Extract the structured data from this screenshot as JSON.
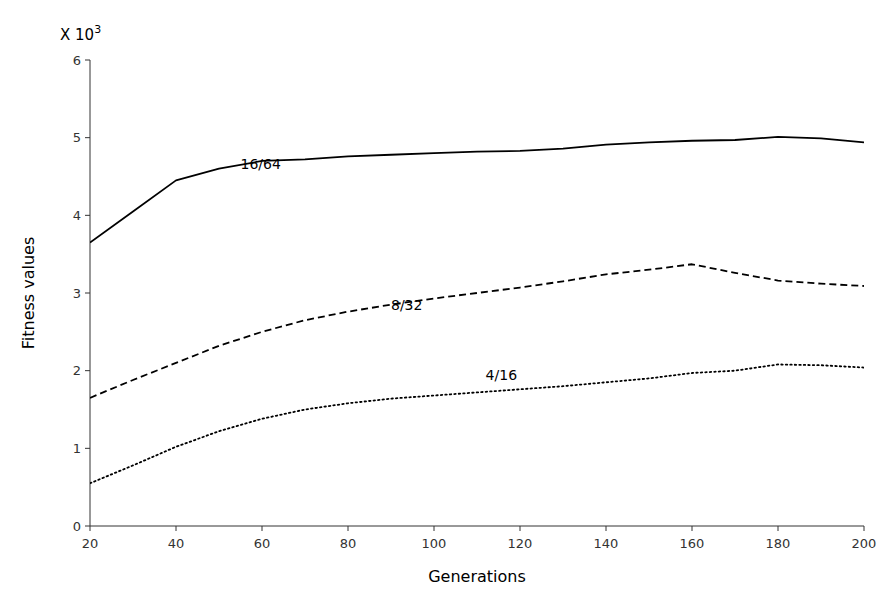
{
  "chart_data": {
    "type": "line",
    "xlabel": "Generations",
    "ylabel": "Fitness values",
    "scale_label": "X 10",
    "scale_exponent": "3",
    "xlim": [
      20,
      200
    ],
    "ylim": [
      0,
      6
    ],
    "xticks": [
      20,
      40,
      60,
      80,
      100,
      120,
      140,
      160,
      180,
      200
    ],
    "yticks": [
      0,
      1,
      2,
      3,
      4,
      5,
      6
    ],
    "x": [
      20,
      30,
      40,
      50,
      60,
      70,
      80,
      90,
      100,
      110,
      120,
      130,
      140,
      150,
      160,
      170,
      180,
      190,
      200
    ],
    "series": [
      {
        "line_style": "solid",
        "color": "#000000",
        "values": [
          3.65,
          4.05,
          4.45,
          4.6,
          4.7,
          4.72,
          4.76,
          4.78,
          4.8,
          4.82,
          4.83,
          4.86,
          4.91,
          4.94,
          4.96,
          4.97,
          5.01,
          4.99,
          4.94
        ]
      },
      {
        "line_style": "dashed",
        "color": "#000000",
        "values": [
          1.65,
          1.88,
          2.1,
          2.32,
          2.5,
          2.65,
          2.76,
          2.85,
          2.93,
          3.0,
          3.07,
          3.15,
          3.24,
          3.3,
          3.37,
          3.26,
          3.16,
          3.12,
          3.09
        ]
      },
      {
        "line_style": "dotted",
        "color": "#000000",
        "values": [
          0.55,
          0.78,
          1.02,
          1.22,
          1.38,
          1.5,
          1.58,
          1.64,
          1.68,
          1.72,
          1.76,
          1.8,
          1.85,
          1.9,
          1.97,
          2.0,
          2.08,
          2.07,
          2.04
        ]
      }
    ],
    "annotations": [
      {
        "text": "16/64",
        "x": 55,
        "y": 4.6
      },
      {
        "text": "8/32",
        "x": 90,
        "y": 2.78
      },
      {
        "text": "4/16",
        "x": 112,
        "y": 1.88
      }
    ]
  }
}
